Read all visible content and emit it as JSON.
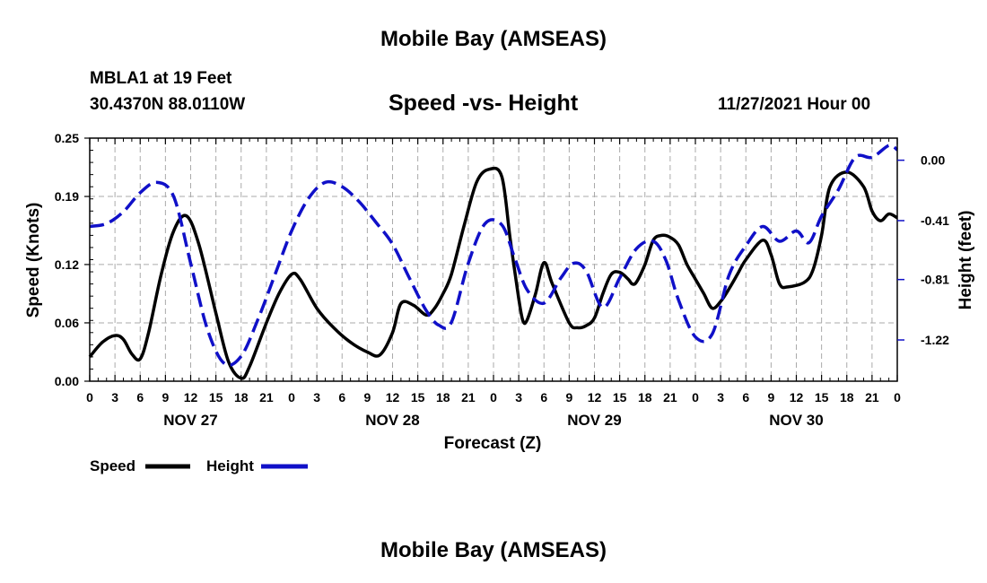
{
  "header": {
    "title": "Mobile Bay (AMSEAS)",
    "station": "MBLA1 at 19 Feet",
    "coords": "30.4370N  88.0110W",
    "subtitle": "Speed -vs- Height",
    "timestamp": "11/27/2021 Hour 00"
  },
  "footer": {
    "title": "Mobile Bay (AMSEAS)"
  },
  "colors": {
    "speed": "#000000",
    "height": "#1010c8",
    "grid": "#aaaaaa"
  },
  "chart_data": {
    "type": "line",
    "title": "Speed -vs- Height",
    "xlabel": "Forecast (Z)",
    "ylabel": "Speed (Knots)",
    "y2label": "Height (feet)",
    "xlim": [
      0,
      96
    ],
    "ylim": [
      0,
      0.25
    ],
    "y2lim": [
      -1.5,
      0.15
    ],
    "x_tick_labels": [
      "0",
      "3",
      "6",
      "9",
      "12",
      "15",
      "18",
      "21",
      "0",
      "3",
      "6",
      "9",
      "12",
      "15",
      "18",
      "21",
      "0",
      "3",
      "6",
      "9",
      "12",
      "15",
      "18",
      "21",
      "0",
      "3",
      "6",
      "9",
      "12",
      "15",
      "18",
      "21",
      "0"
    ],
    "x_tick_step_hours": 3,
    "date_labels": [
      {
        "label": "NOV 27",
        "hour": 12
      },
      {
        "label": "NOV 28",
        "hour": 36
      },
      {
        "label": "NOV 29",
        "hour": 60
      },
      {
        "label": "NOV 30",
        "hour": 84
      }
    ],
    "y_ticks": [
      0.0,
      0.06,
      0.12,
      0.19,
      0.25
    ],
    "y_tick_labels": [
      "0.00",
      "0.06",
      "0.12",
      "0.19",
      "0.25"
    ],
    "y2_ticks": [
      0.0,
      -0.41,
      -0.81,
      -1.22
    ],
    "y2_tick_labels": [
      "0.00",
      "-0.41",
      "-0.81",
      "-1.22"
    ],
    "legend": [
      {
        "name": "Speed",
        "style": "solid"
      },
      {
        "name": "Height",
        "style": "dashed"
      }
    ],
    "series": [
      {
        "name": "Speed",
        "axis": "left",
        "x": [
          0,
          1.5,
          3,
          4,
          5,
          6,
          7,
          8.5,
          10,
          11.5,
          13,
          15,
          16.5,
          18,
          19,
          21,
          22.5,
          24,
          25,
          27,
          29,
          31,
          33,
          34.5,
          36,
          37,
          38.5,
          40,
          41,
          42,
          43,
          44.5,
          46,
          47.5,
          49,
          50,
          51,
          51.5,
          52,
          53,
          54,
          55,
          57,
          58,
          59,
          60,
          61,
          62,
          63,
          64,
          64.5,
          65,
          66,
          67,
          68,
          69,
          70,
          71,
          72,
          73,
          74,
          75,
          76,
          77,
          78,
          80,
          81,
          82,
          83,
          85,
          86,
          87,
          88,
          90,
          92,
          93,
          94,
          95,
          96
        ],
        "values": [
          0.025,
          0.04,
          0.047,
          0.043,
          0.028,
          0.023,
          0.05,
          0.11,
          0.155,
          0.17,
          0.14,
          0.07,
          0.02,
          0.003,
          0.015,
          0.06,
          0.09,
          0.11,
          0.105,
          0.075,
          0.055,
          0.04,
          0.03,
          0.027,
          0.05,
          0.08,
          0.078,
          0.068,
          0.075,
          0.09,
          0.11,
          0.16,
          0.205,
          0.218,
          0.21,
          0.145,
          0.085,
          0.062,
          0.063,
          0.09,
          0.122,
          0.1,
          0.06,
          0.055,
          0.057,
          0.065,
          0.09,
          0.11,
          0.112,
          0.105,
          0.1,
          0.102,
          0.12,
          0.145,
          0.15,
          0.148,
          0.14,
          0.12,
          0.105,
          0.09,
          0.075,
          0.082,
          0.095,
          0.11,
          0.125,
          0.145,
          0.13,
          0.1,
          0.097,
          0.102,
          0.115,
          0.15,
          0.2,
          0.215,
          0.2,
          0.175,
          0.165,
          0.172,
          0.168
        ]
      },
      {
        "name": "Height",
        "axis": "right",
        "x": [
          0,
          2,
          4,
          6,
          8,
          10,
          12,
          14,
          16,
          18,
          20,
          22,
          24,
          26,
          28,
          30,
          32,
          34,
          36,
          38,
          40,
          41.5,
          43,
          45,
          47,
          49,
          50.5,
          52,
          54,
          56,
          57.5,
          59,
          61,
          63,
          65,
          67,
          68.5,
          70,
          72,
          74,
          76,
          78,
          80,
          82,
          84,
          85.5,
          87,
          89,
          91,
          93,
          95,
          96
        ],
        "values": [
          -0.45,
          -0.43,
          -0.35,
          -0.22,
          -0.15,
          -0.25,
          -0.7,
          -1.15,
          -1.38,
          -1.33,
          -1.08,
          -0.78,
          -0.48,
          -0.26,
          -0.15,
          -0.18,
          -0.28,
          -0.42,
          -0.57,
          -0.8,
          -1.02,
          -1.12,
          -1.1,
          -0.7,
          -0.43,
          -0.44,
          -0.66,
          -0.88,
          -0.97,
          -0.8,
          -0.7,
          -0.75,
          -1.0,
          -0.8,
          -0.6,
          -0.55,
          -0.68,
          -0.95,
          -1.2,
          -1.18,
          -0.78,
          -0.58,
          -0.45,
          -0.55,
          -0.48,
          -0.56,
          -0.38,
          -0.2,
          0.02,
          0.02,
          0.1,
          0.07
        ]
      }
    ]
  }
}
